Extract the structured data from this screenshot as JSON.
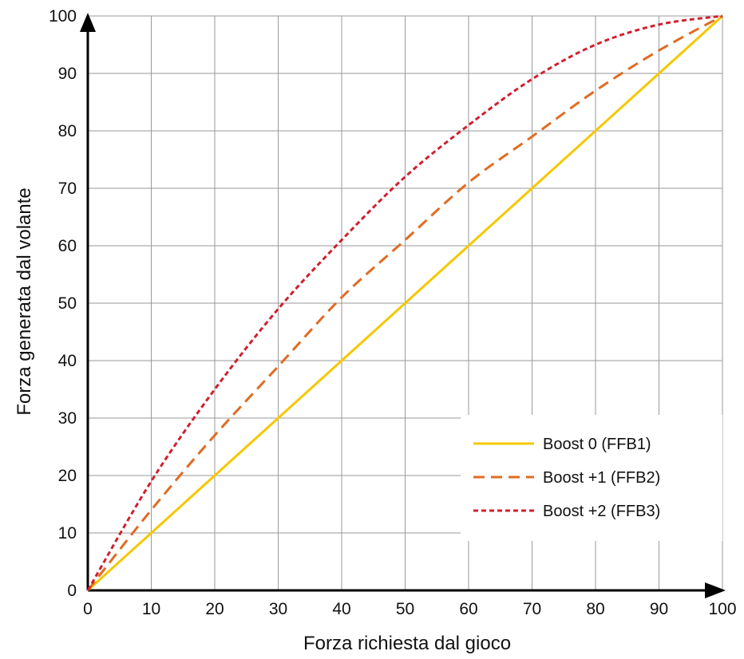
{
  "chart_data": {
    "type": "line",
    "title": "",
    "xlabel": "Forza richiesta dal gioco",
    "ylabel": "Forza generata dal volante",
    "xlim": [
      0,
      100
    ],
    "ylim": [
      0,
      100
    ],
    "xticks": [
      0,
      10,
      20,
      30,
      40,
      50,
      60,
      70,
      80,
      90,
      100
    ],
    "yticks": [
      0,
      10,
      20,
      30,
      40,
      50,
      60,
      70,
      80,
      90,
      100
    ],
    "grid": true,
    "legend_position": "bottom-right",
    "x": [
      0,
      10,
      20,
      30,
      40,
      50,
      60,
      70,
      80,
      90,
      100
    ],
    "series": [
      {
        "name": "Boost 0 (FFB1)",
        "color": "#f5c800",
        "line_style": "solid",
        "values": [
          0,
          10,
          20,
          30,
          40,
          50,
          60,
          70,
          80,
          90,
          100
        ]
      },
      {
        "name": "Boost +1 (FFB2)",
        "color": "#e06b22",
        "line_style": "dashed",
        "values": [
          0,
          14,
          27,
          39,
          51,
          61,
          71,
          79,
          87,
          94,
          100
        ]
      },
      {
        "name": "Boost +2 (FFB3)",
        "color": "#d0202e",
        "line_style": "dotted",
        "values": [
          0,
          19,
          35,
          49,
          61,
          72,
          81,
          89,
          95,
          98.5,
          100
        ]
      }
    ]
  }
}
